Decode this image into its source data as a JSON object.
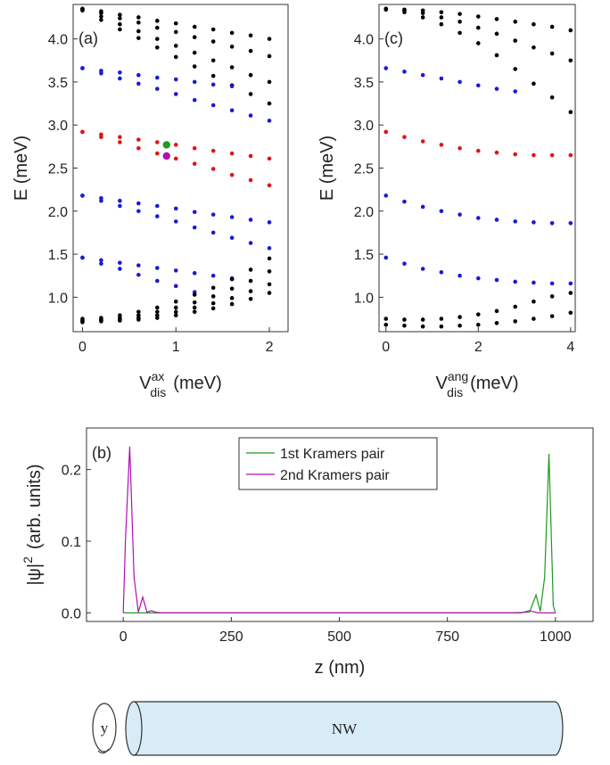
{
  "chart_data": [
    {
      "type": "scatter",
      "annotation": "(a)",
      "ylabel": "E (meV)",
      "xlabel": {
        "base": "V",
        "sup": "ax",
        "sub": "dis",
        "unit": "(meV)"
      },
      "xlim": [
        -0.1,
        2.2
      ],
      "ylim": [
        0.6,
        4.4
      ],
      "xticks": [
        0,
        1,
        2
      ],
      "yticks": [
        {
          "value": 1.0,
          "label": "1.0"
        },
        {
          "value": 1.5,
          "label": "1.5"
        },
        {
          "value": 2.0,
          "label": "2.0"
        },
        {
          "value": 2.5,
          "label": "2.5"
        },
        {
          "value": 3.0,
          "label": "3.0"
        },
        {
          "value": 3.5,
          "label": "3.5"
        },
        {
          "value": 4.0,
          "label": "4.0"
        }
      ],
      "x": [
        0,
        0.2,
        0.4,
        0.6,
        0.8,
        1.0,
        1.2,
        1.4,
        1.6,
        1.8,
        2.0
      ],
      "series": [
        {
          "color": "#000000",
          "values": [
            4.35,
            4.32,
            4.28,
            4.25,
            4.21,
            4.18,
            4.14,
            4.11,
            4.07,
            4.04,
            4.0
          ]
        },
        {
          "color": "#000000",
          "values": [
            4.35,
            4.3,
            4.24,
            4.19,
            4.13,
            4.08,
            4.02,
            3.97,
            3.91,
            3.86,
            3.8
          ]
        },
        {
          "color": "#000000",
          "values": [
            4.34,
            4.26,
            4.17,
            4.09,
            4.0,
            3.92,
            3.84,
            3.75,
            3.67,
            3.58,
            3.5
          ]
        },
        {
          "color": "#000000",
          "values": [
            4.33,
            4.22,
            4.11,
            4.01,
            3.9,
            3.79,
            3.68,
            3.57,
            3.46,
            3.36,
            3.25
          ]
        },
        {
          "color": "#1a1ad6",
          "values": [
            3.66,
            3.63,
            3.61,
            3.58,
            3.55,
            3.53,
            3.5,
            3.47,
            3.45,
            null,
            null
          ]
        },
        {
          "color": "#1a1ad6",
          "values": [
            3.66,
            3.6,
            3.54,
            3.48,
            3.42,
            3.36,
            3.29,
            3.23,
            3.17,
            3.11,
            3.05
          ]
        },
        {
          "color": "#e01414",
          "values": [
            2.92,
            2.89,
            2.86,
            2.83,
            2.8,
            2.77,
            2.73,
            2.7,
            2.67,
            2.64,
            2.61
          ]
        },
        {
          "color": "#e01414",
          "values": [
            2.92,
            2.86,
            2.8,
            2.73,
            2.67,
            2.61,
            2.55,
            2.49,
            2.42,
            2.36,
            2.3
          ]
        },
        {
          "color": "#1a1ad6",
          "values": [
            2.18,
            2.15,
            2.12,
            2.09,
            2.06,
            2.03,
            1.99,
            1.96,
            1.93,
            1.9,
            1.87
          ]
        },
        {
          "color": "#1a1ad6",
          "values": [
            2.18,
            2.12,
            2.06,
            2.0,
            1.94,
            1.88,
            1.81,
            1.75,
            1.69,
            1.63,
            1.57
          ]
        },
        {
          "color": "#1a1ad6",
          "values": [
            1.46,
            1.43,
            1.4,
            1.37,
            1.34,
            1.31,
            1.28,
            1.25,
            1.22,
            null,
            null
          ]
        },
        {
          "color": "#1a1ad6",
          "values": [
            1.46,
            1.39,
            1.33,
            1.26,
            1.19,
            1.13,
            1.06,
            null,
            null,
            null,
            null
          ]
        },
        {
          "color": "#000000",
          "values": [
            0.75,
            0.76,
            0.79,
            0.83,
            0.88,
            0.95,
            1.03,
            1.11,
            1.21,
            1.32,
            1.45
          ]
        },
        {
          "color": "#000000",
          "values": [
            0.73,
            0.74,
            0.76,
            0.79,
            0.83,
            0.88,
            0.94,
            1.01,
            1.1,
            1.19,
            1.3
          ]
        },
        {
          "color": "#000000",
          "values": [
            0.72,
            0.73,
            0.74,
            0.76,
            0.79,
            0.83,
            0.88,
            0.93,
            0.99,
            1.07,
            1.15
          ]
        },
        {
          "color": "#000000",
          "values": [
            0.71,
            0.72,
            0.73,
            0.74,
            0.76,
            0.79,
            0.83,
            0.87,
            0.92,
            0.98,
            1.05
          ]
        }
      ],
      "points": [
        {
          "x": 0.9,
          "y": 2.77,
          "color": "#1e9a1e"
        },
        {
          "x": 0.9,
          "y": 2.64,
          "color": "#b010b0"
        }
      ]
    },
    {
      "type": "scatter",
      "annotation": "(c)",
      "ylabel": "E (meV)",
      "xlabel": {
        "base": "V",
        "sup": "ang",
        "sub": "dis",
        "unit": "(meV)"
      },
      "xlim": [
        -0.15,
        4.1
      ],
      "ylim": [
        0.6,
        4.4
      ],
      "xticks": [
        0,
        2,
        4
      ],
      "yticks": [
        {
          "value": 1.0,
          "label": "1.0"
        },
        {
          "value": 1.5,
          "label": "1.5"
        },
        {
          "value": 2.0,
          "label": "2.0"
        },
        {
          "value": 2.5,
          "label": "2.5"
        },
        {
          "value": 3.0,
          "label": "3.0"
        },
        {
          "value": 3.5,
          "label": "3.5"
        },
        {
          "value": 4.0,
          "label": "4.0"
        }
      ],
      "x": [
        0,
        0.4,
        0.8,
        1.2,
        1.6,
        2.0,
        2.4,
        2.8,
        3.2,
        3.6,
        4.0
      ],
      "series": [
        {
          "color": "#000000",
          "values": [
            4.35,
            4.34,
            4.33,
            4.31,
            4.29,
            4.26,
            4.23,
            4.2,
            4.17,
            4.14,
            4.1
          ]
        },
        {
          "color": "#000000",
          "values": [
            4.35,
            4.33,
            4.3,
            4.25,
            4.2,
            4.13,
            4.06,
            3.98,
            3.9,
            3.83,
            3.75
          ]
        },
        {
          "color": "#000000",
          "values": [
            4.34,
            4.31,
            4.25,
            4.17,
            4.07,
            3.95,
            3.81,
            3.65,
            3.48,
            3.32,
            3.15
          ]
        },
        {
          "color": "#1a1ad6",
          "values": [
            3.66,
            3.62,
            3.58,
            3.54,
            3.5,
            3.46,
            3.42,
            3.39,
            null,
            null,
            null
          ]
        },
        {
          "color": "#e01414",
          "values": [
            2.92,
            2.86,
            2.81,
            2.77,
            2.73,
            2.7,
            2.68,
            2.66,
            2.65,
            2.65,
            2.65
          ]
        },
        {
          "color": "#1a1ad6",
          "values": [
            2.18,
            2.11,
            2.05,
            2.0,
            1.96,
            1.92,
            1.9,
            1.88,
            1.87,
            1.86,
            1.86
          ]
        },
        {
          "color": "#1a1ad6",
          "values": [
            1.46,
            1.39,
            1.33,
            1.29,
            1.25,
            1.22,
            1.2,
            1.18,
            1.17,
            1.16,
            1.16
          ]
        },
        {
          "color": "#000000",
          "values": [
            0.75,
            0.74,
            0.74,
            0.75,
            0.77,
            0.8,
            0.84,
            0.89,
            0.95,
            1.01,
            1.05
          ]
        },
        {
          "color": "#000000",
          "values": [
            0.68,
            0.67,
            0.66,
            0.66,
            0.67,
            0.68,
            0.7,
            0.72,
            0.75,
            0.78,
            0.82
          ]
        }
      ]
    },
    {
      "type": "line",
      "annotation": "(b)",
      "ylabel": {
        "base": "|ψ|",
        "sup": "2",
        "unit": "(arb. units)"
      },
      "xlabel": "z (nm)",
      "xlim": [
        -85,
        1087
      ],
      "ylim": [
        -0.012,
        0.258
      ],
      "xticks": [
        0,
        250,
        500,
        750,
        1000
      ],
      "yticks": [
        {
          "value": 0.0,
          "label": "0.0"
        },
        {
          "value": 0.1,
          "label": "0.1"
        },
        {
          "value": 0.2,
          "label": "0.2"
        }
      ],
      "legend": "top",
      "series": [
        {
          "name": "1st Kramers pair",
          "color": "#1e9a1e",
          "x": [
            0,
            900,
            940,
            955,
            965,
            975,
            985,
            995,
            1000
          ],
          "values": [
            0,
            0,
            0.001,
            0.025,
            0.002,
            0.05,
            0.222,
            0.01,
            0
          ]
        },
        {
          "name": "2nd Kramers pair",
          "color": "#b010b0",
          "x": [
            0,
            5,
            15,
            25,
            35,
            45,
            55,
            65,
            75,
            85,
            920,
            940,
            960,
            1000
          ],
          "values": [
            0,
            0.1,
            0.232,
            0.05,
            0.001,
            0.022,
            0.001,
            0.003,
            0.001,
            0,
            0,
            0.003,
            0,
            0
          ]
        }
      ]
    }
  ],
  "diagram": {
    "axis_label": "y",
    "label": "NW"
  }
}
